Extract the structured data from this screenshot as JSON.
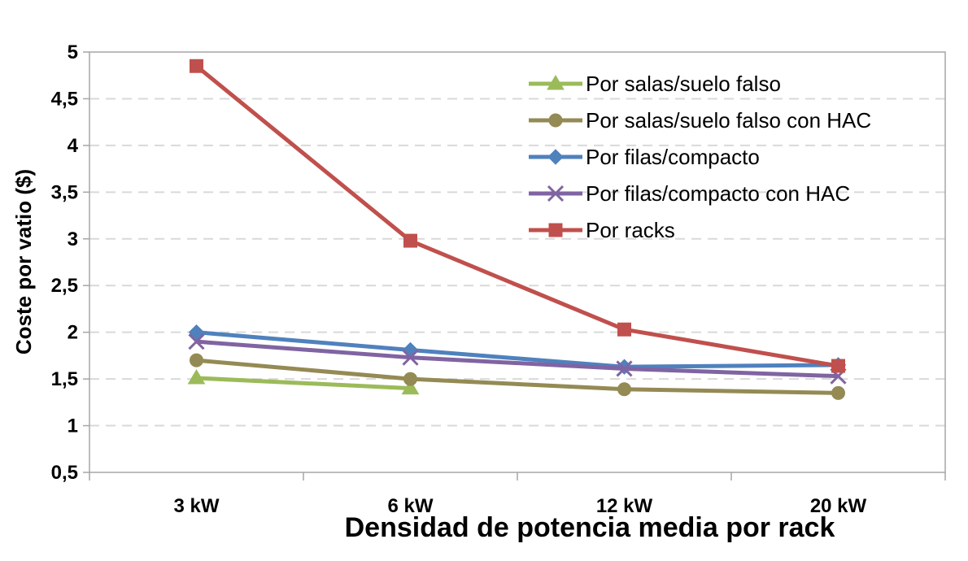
{
  "chart_data": {
    "type": "line",
    "title": "",
    "xlabel": "Densidad de potencia media por rack",
    "ylabel": "Coste por vatio ($)",
    "categories": [
      "3 kW",
      "6 kW",
      "12 kW",
      "20 kW"
    ],
    "ylim": [
      0.5,
      5
    ],
    "yticks": [
      "0,5",
      "1",
      "1,5",
      "2",
      "2,5",
      "3",
      "3,5",
      "4",
      "4,5",
      "5"
    ],
    "grid": true,
    "legend_position": "top-right",
    "series": [
      {
        "name": "Por salas/suelo falso",
        "marker": "triangle",
        "color": "#9bbb59",
        "values": [
          1.51,
          1.4,
          null,
          null
        ]
      },
      {
        "name": "Por salas/suelo falso con HAC",
        "marker": "circle",
        "color": "#948a54",
        "values": [
          1.7,
          1.5,
          1.39,
          1.35
        ]
      },
      {
        "name": "Por filas/compacto",
        "marker": "diamond",
        "color": "#4f81bd",
        "values": [
          2.0,
          1.81,
          1.63,
          1.65
        ]
      },
      {
        "name": "Por filas/compacto con HAC",
        "marker": "x",
        "color": "#8064a2",
        "values": [
          1.9,
          1.73,
          1.61,
          1.53
        ]
      },
      {
        "name": "Por racks",
        "marker": "square",
        "color": "#c0504d",
        "values": [
          4.85,
          2.98,
          2.03,
          1.64
        ]
      }
    ]
  }
}
